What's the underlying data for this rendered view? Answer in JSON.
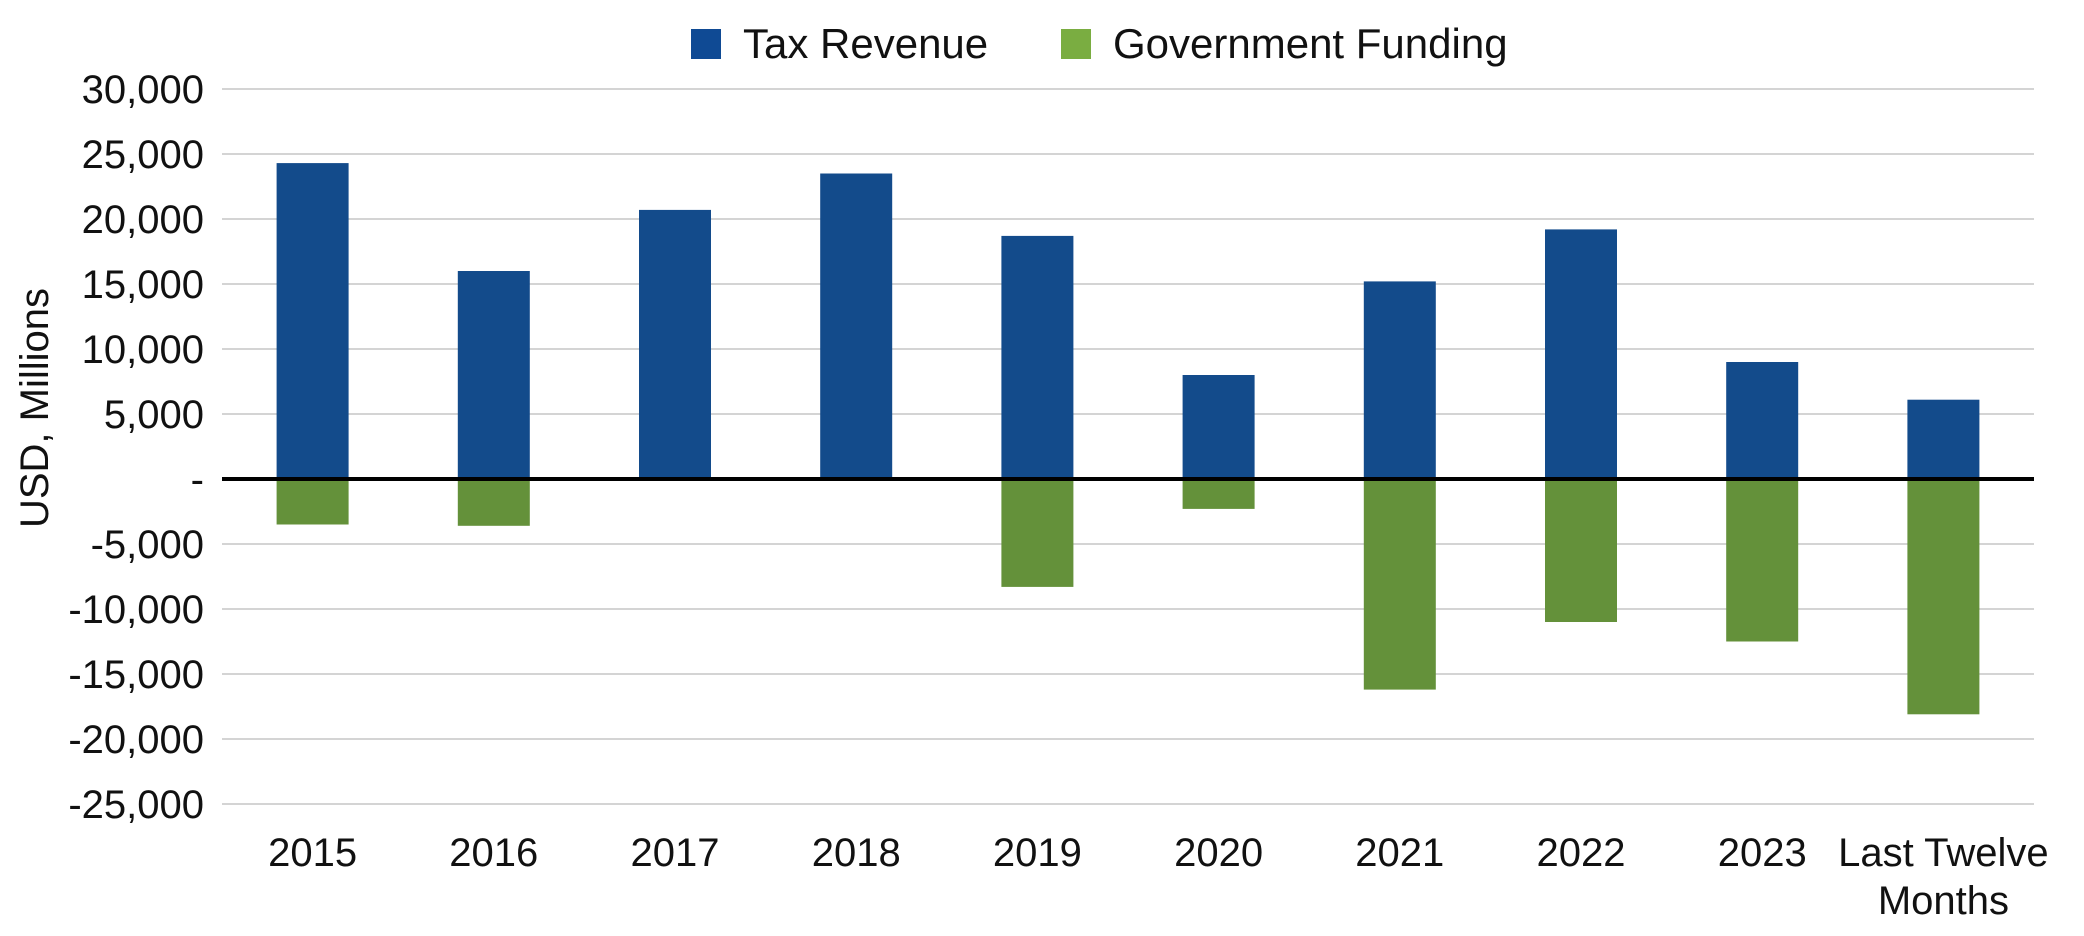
{
  "chart_data": {
    "type": "bar",
    "title": "",
    "xlabel": "",
    "ylabel": "USD, Millions",
    "ylim": [
      -25000,
      30000
    ],
    "y_ticks": [
      30000,
      25000,
      20000,
      15000,
      10000,
      5000,
      0,
      -5000,
      -10000,
      -15000,
      -20000,
      -25000
    ],
    "y_tick_labels": [
      "30,000",
      "25,000",
      "20,000",
      "15,000",
      "10,000",
      "5,000",
      "-",
      "-5,000",
      "-10,000",
      "-15,000",
      "-20,000",
      "-25,000"
    ],
    "grid": true,
    "legend_position": "top-center",
    "categories": [
      "2015",
      "2016",
      "2017",
      "2018",
      "2019",
      "2020",
      "2021",
      "2022",
      "2023",
      "Last Twelve Months"
    ],
    "category_lines": [
      [
        "2015"
      ],
      [
        "2016"
      ],
      [
        "2017"
      ],
      [
        "2018"
      ],
      [
        "2019"
      ],
      [
        "2020"
      ],
      [
        "2021"
      ],
      [
        "2022"
      ],
      [
        "2023"
      ],
      [
        "Last Twelve",
        "Months"
      ]
    ],
    "series": [
      {
        "name": "Tax Revenue",
        "color": "#134b8b",
        "legend_color": "#0f4a94",
        "values": [
          24300,
          16000,
          20700,
          23500,
          18700,
          8000,
          15200,
          19200,
          9000,
          6100
        ]
      },
      {
        "name": "Government Funding",
        "color": "#64913a",
        "legend_color": "#7aad41",
        "values": [
          -3500,
          -3600,
          0,
          0,
          -8300,
          -2300,
          -16200,
          -11000,
          -12500,
          -18100
        ]
      }
    ]
  }
}
